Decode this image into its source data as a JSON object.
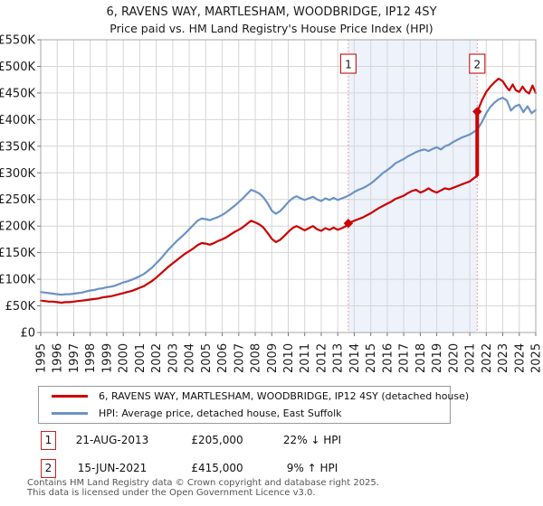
{
  "header": {
    "title": "6, RAVENS WAY, MARTLESHAM, WOODBRIDGE, IP12 4SY",
    "subtitle": "Price paid vs. HM Land Registry's House Price Index (HPI)"
  },
  "chart_data": {
    "type": "line",
    "title": "6, RAVENS WAY, MARTLESHAM, WOODBRIDGE, IP12 4SY",
    "subtitle": "Price paid vs. HM Land Registry's House Price Index (HPI)",
    "xlabel": "",
    "ylabel": "",
    "x_range": [
      1995,
      2025
    ],
    "y_range": [
      0,
      550
    ],
    "y_unit": "£K",
    "grid": true,
    "legend_position": "bottom",
    "x_ticks": [
      "1995",
      "1996",
      "1997",
      "1998",
      "1999",
      "2000",
      "2001",
      "2002",
      "2003",
      "2004",
      "2005",
      "2006",
      "2007",
      "2008",
      "2009",
      "2010",
      "2011",
      "2012",
      "2013",
      "2014",
      "2015",
      "2016",
      "2017",
      "2018",
      "2019",
      "2020",
      "2021",
      "2022",
      "2023",
      "2024",
      "2025"
    ],
    "y_ticks": [
      {
        "v": 0,
        "label": "£0"
      },
      {
        "v": 50,
        "label": "£50K"
      },
      {
        "v": 100,
        "label": "£100K"
      },
      {
        "v": 150,
        "label": "£150K"
      },
      {
        "v": 200,
        "label": "£200K"
      },
      {
        "v": 250,
        "label": "£250K"
      },
      {
        "v": 300,
        "label": "£300K"
      },
      {
        "v": 350,
        "label": "£350K"
      },
      {
        "v": 400,
        "label": "£400K"
      },
      {
        "v": 450,
        "label": "£450K"
      },
      {
        "v": 500,
        "label": "£500K"
      },
      {
        "v": 550,
        "label": "£550K"
      }
    ],
    "colors": {
      "property_line": "#cc0000",
      "hpi_line": "#6b93c4",
      "grid": "#d6d6d6",
      "border": "#a6a6a6",
      "shade": "#edf2fb",
      "marker_line": "#f08080",
      "marker_fill": "#cc0000",
      "box_border": "#cc2222",
      "text": "#1a1a1a"
    },
    "shaded_region": {
      "from": 2013.64,
      "to": 2021.45
    },
    "markers": [
      {
        "label": "1",
        "year": 2013.64,
        "value": 205
      },
      {
        "label": "2",
        "year": 2021.45,
        "value": 415,
        "stem_from": 294
      }
    ],
    "series": [
      {
        "name": "6, RAVENS WAY, MARTLESHAM, WOODBRIDGE, IP12 4SY (detached house)",
        "color": "#cc0000",
        "width": 2.2,
        "points": [
          [
            1995,
            60
          ],
          [
            1995.25,
            59
          ],
          [
            1995.5,
            58
          ],
          [
            1995.75,
            58
          ],
          [
            1996,
            57
          ],
          [
            1996.25,
            56
          ],
          [
            1996.5,
            57
          ],
          [
            1996.75,
            57
          ],
          [
            1997,
            58
          ],
          [
            1997.25,
            59
          ],
          [
            1997.5,
            60
          ],
          [
            1997.75,
            61
          ],
          [
            1998,
            62
          ],
          [
            1998.25,
            63
          ],
          [
            1998.5,
            64
          ],
          [
            1998.75,
            66
          ],
          [
            1999,
            67
          ],
          [
            1999.25,
            68
          ],
          [
            1999.5,
            70
          ],
          [
            1999.75,
            72
          ],
          [
            2000,
            74
          ],
          [
            2000.25,
            76
          ],
          [
            2000.5,
            78
          ],
          [
            2000.75,
            81
          ],
          [
            2001,
            84
          ],
          [
            2001.25,
            87
          ],
          [
            2001.5,
            92
          ],
          [
            2001.75,
            97
          ],
          [
            2002,
            103
          ],
          [
            2002.25,
            110
          ],
          [
            2002.5,
            117
          ],
          [
            2002.75,
            124
          ],
          [
            2003,
            130
          ],
          [
            2003.25,
            136
          ],
          [
            2003.5,
            142
          ],
          [
            2003.75,
            148
          ],
          [
            2004,
            153
          ],
          [
            2004.25,
            158
          ],
          [
            2004.5,
            164
          ],
          [
            2004.75,
            168
          ],
          [
            2005,
            167
          ],
          [
            2005.25,
            165
          ],
          [
            2005.5,
            168
          ],
          [
            2005.75,
            172
          ],
          [
            2006,
            175
          ],
          [
            2006.25,
            179
          ],
          [
            2006.5,
            184
          ],
          [
            2006.75,
            189
          ],
          [
            2007,
            193
          ],
          [
            2007.25,
            198
          ],
          [
            2007.5,
            204
          ],
          [
            2007.75,
            210
          ],
          [
            2008,
            207
          ],
          [
            2008.25,
            203
          ],
          [
            2008.5,
            197
          ],
          [
            2008.75,
            187
          ],
          [
            2009,
            176
          ],
          [
            2009.25,
            170
          ],
          [
            2009.5,
            174
          ],
          [
            2009.75,
            181
          ],
          [
            2010,
            189
          ],
          [
            2010.25,
            196
          ],
          [
            2010.5,
            200
          ],
          [
            2010.75,
            196
          ],
          [
            2011,
            192
          ],
          [
            2011.25,
            196
          ],
          [
            2011.5,
            200
          ],
          [
            2011.75,
            194
          ],
          [
            2012,
            191
          ],
          [
            2012.25,
            196
          ],
          [
            2012.5,
            193
          ],
          [
            2012.75,
            197
          ],
          [
            2013,
            193
          ],
          [
            2013.25,
            196
          ],
          [
            2013.5,
            200
          ],
          [
            2013.64,
            205
          ],
          [
            2014,
            210
          ],
          [
            2014.25,
            213
          ],
          [
            2014.5,
            216
          ],
          [
            2014.75,
            220
          ],
          [
            2015,
            224
          ],
          [
            2015.25,
            229
          ],
          [
            2015.5,
            234
          ],
          [
            2015.75,
            238
          ],
          [
            2016,
            242
          ],
          [
            2016.25,
            246
          ],
          [
            2016.5,
            251
          ],
          [
            2016.75,
            254
          ],
          [
            2017,
            257
          ],
          [
            2017.25,
            262
          ],
          [
            2017.5,
            266
          ],
          [
            2017.75,
            268
          ],
          [
            2018,
            263
          ],
          [
            2018.25,
            266
          ],
          [
            2018.5,
            271
          ],
          [
            2018.75,
            266
          ],
          [
            2019,
            263
          ],
          [
            2019.25,
            267
          ],
          [
            2019.5,
            271
          ],
          [
            2019.75,
            269
          ],
          [
            2020,
            272
          ],
          [
            2020.25,
            275
          ],
          [
            2020.5,
            278
          ],
          [
            2020.75,
            281
          ],
          [
            2021,
            284
          ],
          [
            2021.25,
            290
          ],
          [
            2021.44,
            294
          ],
          [
            2021.46,
            415
          ],
          [
            2021.75,
            437
          ],
          [
            2022,
            452
          ],
          [
            2022.25,
            462
          ],
          [
            2022.5,
            470
          ],
          [
            2022.75,
            477
          ],
          [
            2023,
            472
          ],
          [
            2023.25,
            460
          ],
          [
            2023.4,
            455
          ],
          [
            2023.6,
            466
          ],
          [
            2023.8,
            455
          ],
          [
            2024,
            452
          ],
          [
            2024.2,
            462
          ],
          [
            2024.4,
            453
          ],
          [
            2024.6,
            449
          ],
          [
            2024.8,
            464
          ],
          [
            2025,
            450
          ]
        ]
      },
      {
        "name": "HPI: Average price, detached house, East Suffolk",
        "color": "#6b93c4",
        "width": 2.2,
        "points": [
          [
            1995,
            76
          ],
          [
            1995.25,
            75
          ],
          [
            1995.5,
            74
          ],
          [
            1995.75,
            73
          ],
          [
            1996,
            72
          ],
          [
            1996.25,
            71
          ],
          [
            1996.5,
            72
          ],
          [
            1996.75,
            72
          ],
          [
            1997,
            73
          ],
          [
            1997.25,
            74
          ],
          [
            1997.5,
            75
          ],
          [
            1997.75,
            77
          ],
          [
            1998,
            79
          ],
          [
            1998.25,
            80
          ],
          [
            1998.5,
            82
          ],
          [
            1998.75,
            83
          ],
          [
            1999,
            85
          ],
          [
            1999.25,
            86
          ],
          [
            1999.5,
            88
          ],
          [
            1999.75,
            91
          ],
          [
            2000,
            94
          ],
          [
            2000.25,
            96
          ],
          [
            2000.5,
            99
          ],
          [
            2000.75,
            102
          ],
          [
            2001,
            106
          ],
          [
            2001.25,
            110
          ],
          [
            2001.5,
            116
          ],
          [
            2001.75,
            122
          ],
          [
            2002,
            130
          ],
          [
            2002.25,
            138
          ],
          [
            2002.5,
            147
          ],
          [
            2002.75,
            156
          ],
          [
            2003,
            164
          ],
          [
            2003.25,
            172
          ],
          [
            2003.5,
            179
          ],
          [
            2003.75,
            186
          ],
          [
            2004,
            194
          ],
          [
            2004.25,
            202
          ],
          [
            2004.5,
            210
          ],
          [
            2004.75,
            214
          ],
          [
            2005,
            213
          ],
          [
            2005.25,
            211
          ],
          [
            2005.5,
            214
          ],
          [
            2005.75,
            217
          ],
          [
            2006,
            221
          ],
          [
            2006.25,
            226
          ],
          [
            2006.5,
            232
          ],
          [
            2006.75,
            238
          ],
          [
            2007,
            245
          ],
          [
            2007.25,
            252
          ],
          [
            2007.5,
            260
          ],
          [
            2007.75,
            268
          ],
          [
            2008,
            265
          ],
          [
            2008.25,
            261
          ],
          [
            2008.5,
            254
          ],
          [
            2008.75,
            243
          ],
          [
            2009,
            229
          ],
          [
            2009.25,
            223
          ],
          [
            2009.5,
            228
          ],
          [
            2009.75,
            236
          ],
          [
            2010,
            245
          ],
          [
            2010.25,
            252
          ],
          [
            2010.5,
            256
          ],
          [
            2010.75,
            252
          ],
          [
            2011,
            249
          ],
          [
            2011.25,
            252
          ],
          [
            2011.5,
            255
          ],
          [
            2011.75,
            250
          ],
          [
            2012,
            247
          ],
          [
            2012.25,
            252
          ],
          [
            2012.5,
            249
          ],
          [
            2012.75,
            253
          ],
          [
            2013,
            249
          ],
          [
            2013.25,
            252
          ],
          [
            2013.5,
            255
          ],
          [
            2013.75,
            259
          ],
          [
            2014,
            264
          ],
          [
            2014.25,
            268
          ],
          [
            2014.5,
            271
          ],
          [
            2014.75,
            275
          ],
          [
            2015,
            280
          ],
          [
            2015.25,
            286
          ],
          [
            2015.5,
            293
          ],
          [
            2015.75,
            300
          ],
          [
            2016,
            305
          ],
          [
            2016.25,
            311
          ],
          [
            2016.5,
            318
          ],
          [
            2016.75,
            322
          ],
          [
            2017,
            326
          ],
          [
            2017.25,
            331
          ],
          [
            2017.5,
            335
          ],
          [
            2017.75,
            339
          ],
          [
            2018,
            342
          ],
          [
            2018.25,
            344
          ],
          [
            2018.5,
            341
          ],
          [
            2018.75,
            345
          ],
          [
            2019,
            348
          ],
          [
            2019.25,
            344
          ],
          [
            2019.5,
            350
          ],
          [
            2019.75,
            353
          ],
          [
            2020,
            358
          ],
          [
            2020.25,
            362
          ],
          [
            2020.5,
            366
          ],
          [
            2020.75,
            369
          ],
          [
            2021,
            372
          ],
          [
            2021.25,
            377
          ],
          [
            2021.45,
            381
          ],
          [
            2021.75,
            396
          ],
          [
            2022,
            412
          ],
          [
            2022.25,
            424
          ],
          [
            2022.5,
            432
          ],
          [
            2022.75,
            438
          ],
          [
            2023,
            441
          ],
          [
            2023.25,
            436
          ],
          [
            2023.5,
            417
          ],
          [
            2023.75,
            425
          ],
          [
            2024,
            428
          ],
          [
            2024.25,
            414
          ],
          [
            2024.5,
            425
          ],
          [
            2024.75,
            412
          ],
          [
            2025,
            418
          ]
        ]
      }
    ]
  },
  "transactions": [
    {
      "num": "1",
      "date": "21-AUG-2013",
      "price": "£205,000",
      "vs_hpi": "22% ↓ HPI"
    },
    {
      "num": "2",
      "date": "15-JUN-2021",
      "price": "£415,000",
      "vs_hpi": "9% ↑ HPI"
    }
  ],
  "footer": {
    "line1": "Contains HM Land Registry data © Crown copyright and database right 2025.",
    "line2": "This data is licensed under the Open Government Licence v3.0."
  }
}
